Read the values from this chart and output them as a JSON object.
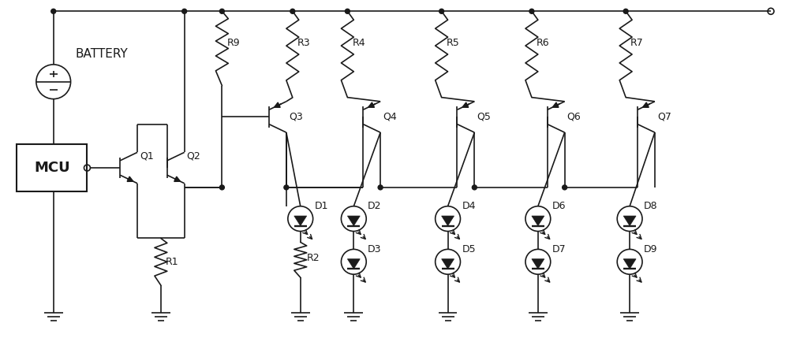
{
  "background_color": "#ffffff",
  "line_color": "#1a1a1a",
  "line_width": 1.2,
  "figsize": [
    10.0,
    4.43
  ],
  "dpi": 100,
  "xlim": [
    0,
    1000
  ],
  "ylim": [
    0,
    443
  ]
}
